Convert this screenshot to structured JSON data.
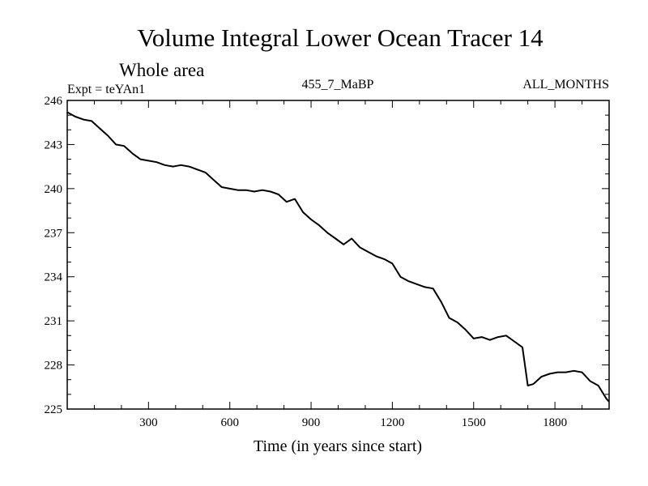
{
  "chart_data": {
    "type": "line",
    "title": "Volume Integral Lower Ocean Tracer 14",
    "subtitle": "Whole area",
    "expt_label": "Expt = teYAn1",
    "run_label": "455_7_MaBP",
    "months_label": "ALL_MONTHS",
    "xlabel": "Time (in years since start)",
    "ylabel": "",
    "xlim": [
      0,
      2000
    ],
    "ylim": [
      225,
      246
    ],
    "x_ticks": [
      300,
      600,
      900,
      1200,
      1500,
      1800
    ],
    "x_tick_labels": [
      "300",
      "600",
      "900",
      "1200",
      "1500",
      "1800"
    ],
    "y_ticks": [
      225,
      228,
      231,
      234,
      237,
      240,
      243,
      246
    ],
    "y_tick_labels": [
      "225",
      "228",
      "231",
      "234",
      "237",
      "240",
      "243",
      "246"
    ],
    "grid": false,
    "series": [
      {
        "name": "Volume Integral Lower Ocean Tracer 14",
        "x": [
          0,
          30,
          60,
          90,
          120,
          150,
          180,
          210,
          240,
          270,
          300,
          330,
          360,
          390,
          420,
          450,
          480,
          510,
          540,
          570,
          600,
          630,
          660,
          690,
          720,
          750,
          780,
          810,
          840,
          870,
          900,
          930,
          960,
          990,
          1020,
          1050,
          1080,
          1110,
          1140,
          1170,
          1200,
          1230,
          1260,
          1290,
          1320,
          1350,
          1380,
          1410,
          1440,
          1470,
          1500,
          1530,
          1560,
          1590,
          1620,
          1650,
          1680,
          1700,
          1720,
          1750,
          1780,
          1810,
          1840,
          1870,
          1900,
          1930,
          1960,
          1990,
          2000
        ],
        "values": [
          245.2,
          244.9,
          244.7,
          244.6,
          244.1,
          243.6,
          243.0,
          242.9,
          242.4,
          242.0,
          241.9,
          241.8,
          241.6,
          241.5,
          241.6,
          241.5,
          241.3,
          241.1,
          240.6,
          240.1,
          240.0,
          239.9,
          239.9,
          239.8,
          239.9,
          239.8,
          239.6,
          239.1,
          239.3,
          238.4,
          237.9,
          237.5,
          237.0,
          236.6,
          236.2,
          236.6,
          236.0,
          235.7,
          235.4,
          235.2,
          234.9,
          234.0,
          233.7,
          233.5,
          233.3,
          233.2,
          232.3,
          231.2,
          230.9,
          230.4,
          229.8,
          229.9,
          229.7,
          229.9,
          230.0,
          229.6,
          229.2,
          226.6,
          226.7,
          227.2,
          227.4,
          227.5,
          227.5,
          227.6,
          227.5,
          226.9,
          226.6,
          225.7,
          225.5
        ]
      }
    ]
  }
}
